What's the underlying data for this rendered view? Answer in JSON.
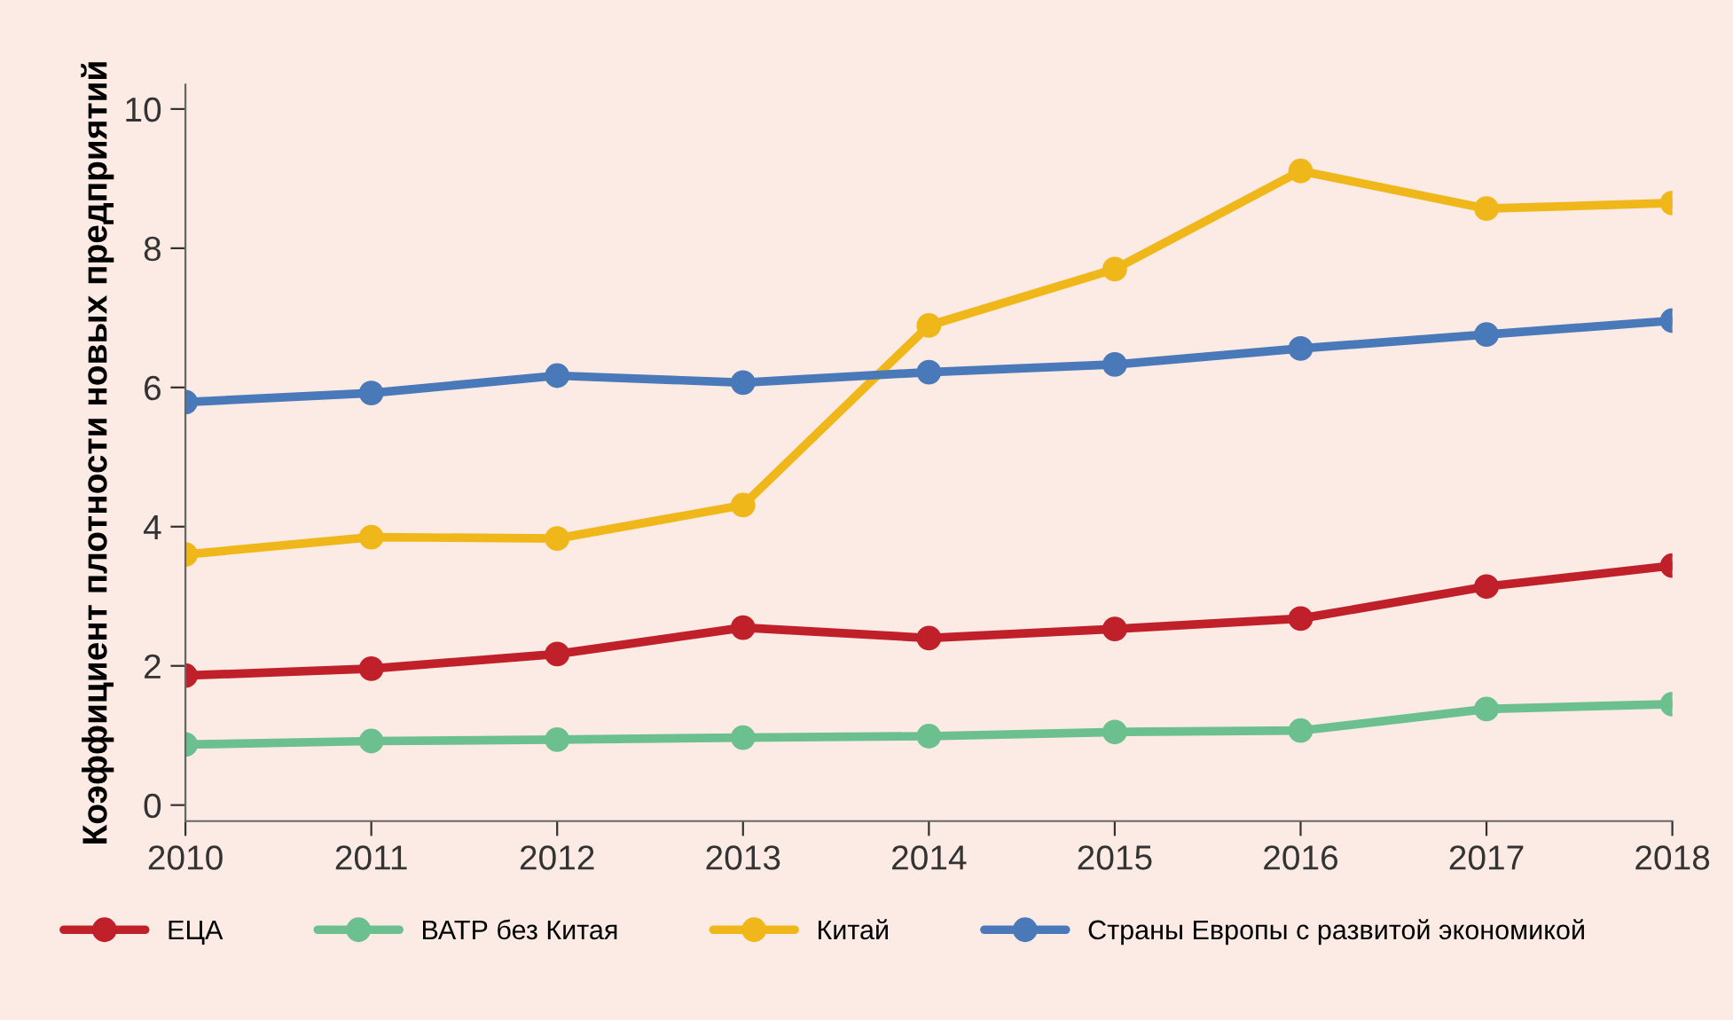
{
  "chart_data": {
    "type": "line",
    "ylabel": "Коэффициент плотности новых предприятий",
    "x": [
      2010,
      2011,
      2012,
      2013,
      2014,
      2015,
      2016,
      2017,
      2018
    ],
    "xlim": [
      2010,
      2018
    ],
    "xticks": [
      2010,
      2011,
      2012,
      2013,
      2014,
      2015,
      2016,
      2017,
      2018
    ],
    "ylim": [
      -0.23,
      10.35
    ],
    "yticks": [
      0,
      2,
      4,
      6,
      8,
      10
    ],
    "grid": false,
    "legend": "bottom",
    "marker": "circle",
    "line_style": "solid",
    "series": [
      {
        "name": "ЕЦА",
        "color": "#c0202a",
        "values": [
          1.86,
          1.96,
          2.17,
          2.55,
          2.4,
          2.53,
          2.68,
          3.14,
          3.44
        ]
      },
      {
        "name": "ВАТР без Китая",
        "color": "#6cc08f",
        "values": [
          0.87,
          0.92,
          0.94,
          0.97,
          0.99,
          1.05,
          1.07,
          1.38,
          1.45
        ]
      },
      {
        "name": "Китай",
        "color": "#f0b71a",
        "values": [
          3.6,
          3.85,
          3.83,
          4.31,
          6.89,
          7.7,
          9.11,
          8.57,
          8.65
        ]
      },
      {
        "name": "Страны Европы с развитой экономикой",
        "color": "#4a79b9",
        "values": [
          5.79,
          5.92,
          6.17,
          6.07,
          6.22,
          6.33,
          6.56,
          6.76,
          6.96
        ]
      }
    ]
  }
}
